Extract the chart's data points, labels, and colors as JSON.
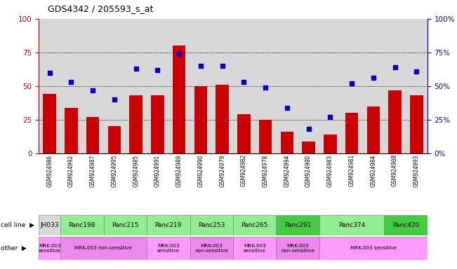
{
  "title": "GDS4342 / 205593_s_at",
  "samples": [
    "GSM924986",
    "GSM924992",
    "GSM924987",
    "GSM924995",
    "GSM924985",
    "GSM924991",
    "GSM924989",
    "GSM924990",
    "GSM924979",
    "GSM924982",
    "GSM924978",
    "GSM924994",
    "GSM924980",
    "GSM924983",
    "GSM924981",
    "GSM924984",
    "GSM924988",
    "GSM924993"
  ],
  "counts": [
    44,
    34,
    27,
    20,
    43,
    43,
    80,
    50,
    51,
    29,
    25,
    16,
    9,
    14,
    30,
    35,
    47,
    43
  ],
  "percentiles": [
    60,
    53,
    47,
    40,
    63,
    62,
    74,
    65,
    65,
    53,
    49,
    34,
    18,
    27,
    52,
    56,
    64,
    61
  ],
  "cell_line_spans": [
    {
      "name": "JH033",
      "start": 0,
      "end": 1,
      "color": "#d8d8d8"
    },
    {
      "name": "Panc198",
      "start": 1,
      "end": 3,
      "color": "#90ee90"
    },
    {
      "name": "Panc215",
      "start": 3,
      "end": 5,
      "color": "#90ee90"
    },
    {
      "name": "Panc219",
      "start": 5,
      "end": 7,
      "color": "#90ee90"
    },
    {
      "name": "Panc253",
      "start": 7,
      "end": 9,
      "color": "#90ee90"
    },
    {
      "name": "Panc265",
      "start": 9,
      "end": 11,
      "color": "#90ee90"
    },
    {
      "name": "Panc291",
      "start": 11,
      "end": 13,
      "color": "#44cc44"
    },
    {
      "name": "Panc374",
      "start": 13,
      "end": 16,
      "color": "#90ee90"
    },
    {
      "name": "Panc420",
      "start": 16,
      "end": 18,
      "color": "#44cc44"
    }
  ],
  "other_spans": [
    {
      "label": "MRK-003\nsensitive",
      "start": 0,
      "end": 1,
      "color": "#ff99ff"
    },
    {
      "label": "MRK-003 non-sensitive",
      "start": 1,
      "end": 5,
      "color": "#ee88ee"
    },
    {
      "label": "MRK-003\nsensitive",
      "start": 5,
      "end": 7,
      "color": "#ff99ff"
    },
    {
      "label": "MRK-003\nnon-sensitive",
      "start": 7,
      "end": 9,
      "color": "#ee88ee"
    },
    {
      "label": "MRK-003\nsensitive",
      "start": 9,
      "end": 11,
      "color": "#ff99ff"
    },
    {
      "label": "MRK-003\nnon-sensitive",
      "start": 11,
      "end": 13,
      "color": "#ee88ee"
    },
    {
      "label": "MRK-003 sensitive",
      "start": 13,
      "end": 18,
      "color": "#ff99ff"
    }
  ],
  "xtick_bg_color": "#d8d8d8",
  "bar_color": "#cc0000",
  "dot_color": "#0000cc",
  "ylim": [
    0,
    100
  ],
  "yticks": [
    0,
    25,
    50,
    75,
    100
  ],
  "grid_lines": [
    25,
    50,
    75
  ],
  "background_color": "#ffffff"
}
